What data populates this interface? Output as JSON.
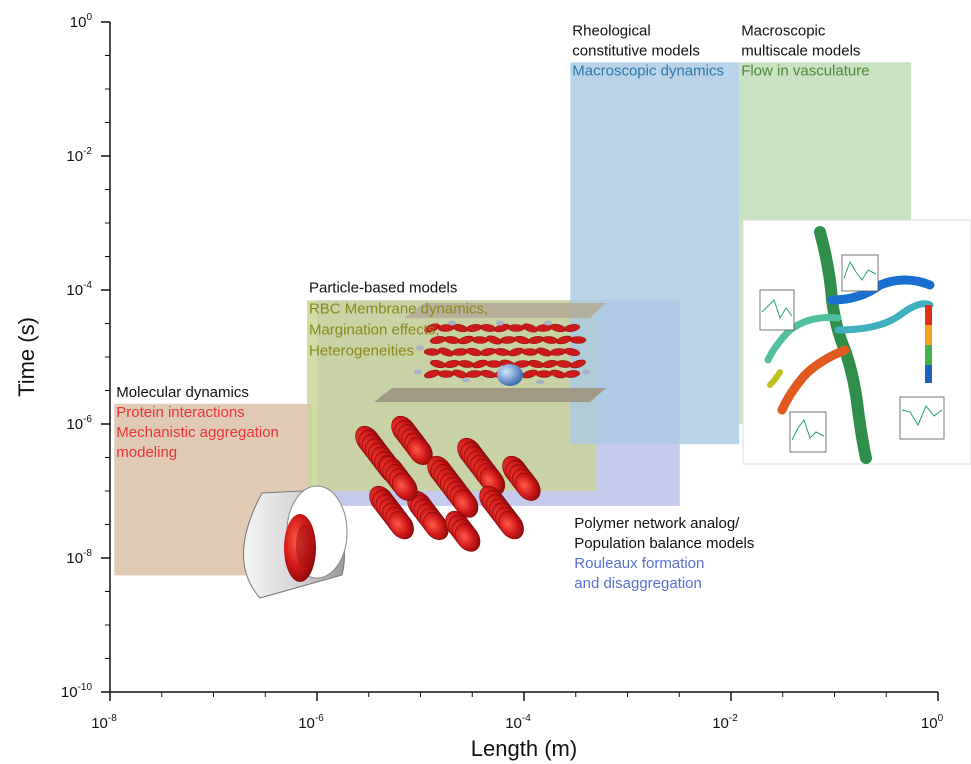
{
  "chart_data": {
    "type": "area",
    "xlabel": "Length (m)",
    "ylabel": "Time (s)",
    "x_scale": "log",
    "y_scale": "log",
    "xlim": [
      1e-08,
      1
    ],
    "ylim": [
      1e-10,
      1
    ],
    "x_ticks": [
      {
        "base": "10",
        "exp": "-8",
        "value": 1e-08
      },
      {
        "base": "10",
        "exp": "-6",
        "value": 1e-06
      },
      {
        "base": "10",
        "exp": "-4",
        "value": 0.0001
      },
      {
        "base": "10",
        "exp": "-2",
        "value": 0.01
      },
      {
        "base": "10",
        "exp": "0",
        "value": 1
      }
    ],
    "y_ticks": [
      {
        "base": "10",
        "exp": "0",
        "value": 1
      },
      {
        "base": "10",
        "exp": "-2",
        "value": 0.01
      },
      {
        "base": "10",
        "exp": "-4",
        "value": 0.0001
      },
      {
        "base": "10",
        "exp": "-6",
        "value": 1e-06
      },
      {
        "base": "10",
        "exp": "-8",
        "value": 1e-08
      },
      {
        "base": "10",
        "exp": "-10",
        "value": 1e-10
      }
    ],
    "grid": false,
    "regions": [
      {
        "key": "molecular",
        "title": [
          "Molecular dynamics"
        ],
        "desc": [
          "Protein interactions",
          "Mechanistic aggregation",
          "modeling"
        ],
        "x_range": [
          1.1e-08,
          9e-07
        ],
        "y_range": [
          5.5e-09,
          2e-06
        ],
        "color": "#d9bea4",
        "text_color": "#e8343a"
      },
      {
        "key": "polymer",
        "title": [
          "Polymer network analog/",
          "Population balance models"
        ],
        "desc": [
          "Rouleaux formation",
          "and disaggregation"
        ],
        "x_range": [
          1e-06,
          0.0032
        ],
        "y_range": [
          6e-08,
          7e-05
        ],
        "color": "#b8bde6",
        "text_color": "#5a6fd6"
      },
      {
        "key": "particle",
        "title": [
          "Particle-based models"
        ],
        "desc": [
          "RBC Membrane dynamics,",
          "Margination effects,",
          "Heterogeneities"
        ],
        "x_range": [
          8e-07,
          0.0005
        ],
        "y_range": [
          1e-07,
          7e-05
        ],
        "color": "#c8d494",
        "text_color": "#8a8a1c"
      },
      {
        "key": "rheological",
        "title": [
          "Rheological",
          "constitutive models"
        ],
        "desc": [
          "Macroscopic dynamics"
        ],
        "x_range": [
          0.00028,
          0.012
        ],
        "y_range": [
          5e-07,
          0.25
        ],
        "color": "#a9cbe3",
        "text_color": "#2a7ab0"
      },
      {
        "key": "macroscopic",
        "title": [
          "Macroscopic",
          "multiscale models"
        ],
        "desc": [
          "Flow in vasculature"
        ],
        "x_range": [
          0.012,
          0.55
        ],
        "y_range": [
          1e-06,
          0.25
        ],
        "color": "#bcdcb4",
        "text_color": "#4a8a30"
      }
    ]
  },
  "colors": {
    "rbc_red": "#cc1a1a",
    "plate_gray": "#a8a090",
    "axis": "#111111"
  }
}
